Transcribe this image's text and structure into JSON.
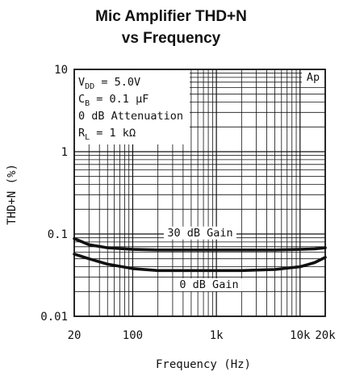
{
  "chart_data": {
    "type": "line",
    "title_line1": "Mic Amplifier THD+N",
    "title_line2": "vs Frequency",
    "xlabel": "Frequency (Hz)",
    "ylabel": "THD+N (%)",
    "xscale": "log",
    "yscale": "log",
    "xlim": [
      20,
      20000
    ],
    "ylim": [
      0.01,
      10
    ],
    "grid": true,
    "x_ticks": [
      {
        "value": 20,
        "label": "20"
      },
      {
        "value": 100,
        "label": "100"
      },
      {
        "value": 1000,
        "label": "1k"
      },
      {
        "value": 10000,
        "label": "10k"
      },
      {
        "value": 20000,
        "label": "20k"
      }
    ],
    "y_ticks": [
      {
        "value": 10,
        "label": "10"
      },
      {
        "value": 1,
        "label": "1"
      },
      {
        "value": 0.1,
        "label": "0.1"
      },
      {
        "value": 0.01,
        "label": "0.01"
      }
    ],
    "conditions": [
      {
        "main": "V",
        "sub": "DD",
        "rest": " = 5.0V"
      },
      {
        "main": "C",
        "sub": "B",
        "rest": " = 0.1 µF"
      },
      {
        "main": "0 dB Attenuation",
        "sub": "",
        "rest": ""
      },
      {
        "main": "R",
        "sub": "L",
        "rest": " = 1 kΩ"
      }
    ],
    "brand": "Ap",
    "series": [
      {
        "name": "30 dB Gain",
        "x": [
          20,
          30,
          50,
          100,
          200,
          500,
          1000,
          2000,
          5000,
          10000,
          15000,
          20000
        ],
        "y": [
          0.088,
          0.074,
          0.068,
          0.065,
          0.064,
          0.064,
          0.064,
          0.064,
          0.064,
          0.065,
          0.066,
          0.068
        ]
      },
      {
        "name": "0 dB Gain",
        "x": [
          20,
          30,
          50,
          100,
          200,
          500,
          1000,
          2000,
          5000,
          10000,
          15000,
          20000
        ],
        "y": [
          0.057,
          0.05,
          0.043,
          0.038,
          0.036,
          0.036,
          0.036,
          0.036,
          0.037,
          0.04,
          0.045,
          0.052
        ]
      }
    ]
  }
}
